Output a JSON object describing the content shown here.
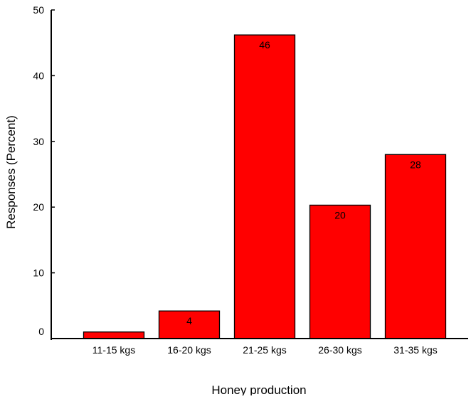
{
  "chart_data": {
    "type": "bar",
    "title": "",
    "xlabel": "Honey production",
    "ylabel": "Responses (Percent)",
    "categories": [
      "11-15 kgs",
      "16-20 kgs",
      "21-25 kgs",
      "26-30 kgs",
      "31-35 kgs"
    ],
    "values": [
      1,
      4.2,
      46.2,
      20.3,
      28
    ],
    "data_labels": [
      "",
      "4",
      "46",
      "20",
      "28"
    ],
    "ylim": [
      0,
      50
    ],
    "yticks": [
      0,
      10,
      20,
      30,
      40,
      50
    ],
    "grid": false,
    "legend": "none",
    "bar_color": "#ff0000",
    "bar_edge_color": "#000000"
  }
}
